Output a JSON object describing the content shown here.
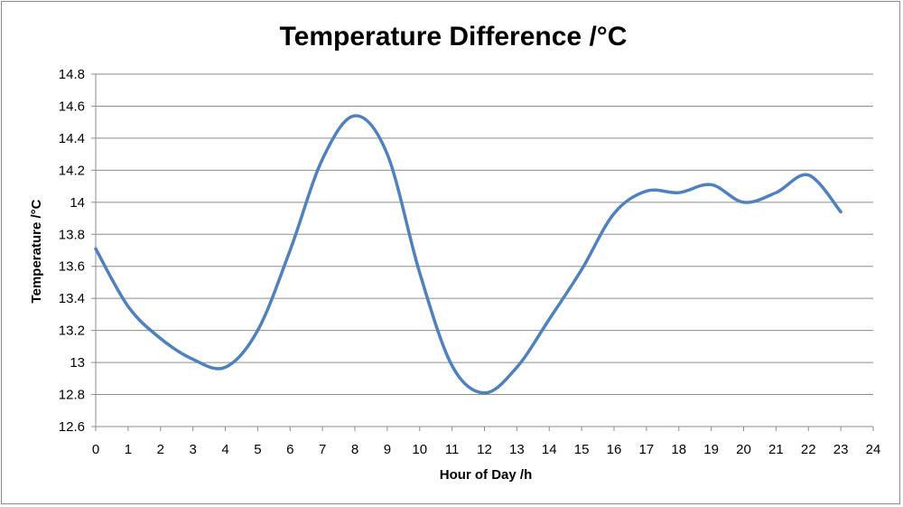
{
  "chart_data": {
    "type": "line",
    "title": "Temperature Difference /°C",
    "xlabel": "Hour of Day /h",
    "ylabel": "Temperature /°C",
    "xlim": [
      0,
      24
    ],
    "ylim": [
      12.6,
      14.8
    ],
    "x_ticks": [
      "0",
      "1",
      "2",
      "3",
      "4",
      "5",
      "6",
      "7",
      "8",
      "9",
      "10",
      "11",
      "12",
      "13",
      "14",
      "15",
      "16",
      "17",
      "18",
      "19",
      "20",
      "21",
      "22",
      "23",
      "24"
    ],
    "y_ticks": [
      "12.6",
      "12.8",
      "13",
      "13.2",
      "13.4",
      "13.6",
      "13.8",
      "14",
      "14.2",
      "14.4",
      "14.6",
      "14.8"
    ],
    "grid": true,
    "smooth": true,
    "series": [
      {
        "color": "#4f81bd",
        "x": [
          0,
          1,
          2,
          3,
          4,
          5,
          6,
          7,
          8,
          9,
          10,
          11,
          12,
          13,
          14,
          15,
          16,
          17,
          18,
          19,
          20,
          21,
          22,
          23
        ],
        "values": [
          13.71,
          13.35,
          13.15,
          13.02,
          12.97,
          13.2,
          13.7,
          14.27,
          14.54,
          14.3,
          13.56,
          12.98,
          12.81,
          12.97,
          13.27,
          13.58,
          13.93,
          14.07,
          14.06,
          14.11,
          14.0,
          14.06,
          14.17,
          13.94
        ]
      }
    ]
  }
}
